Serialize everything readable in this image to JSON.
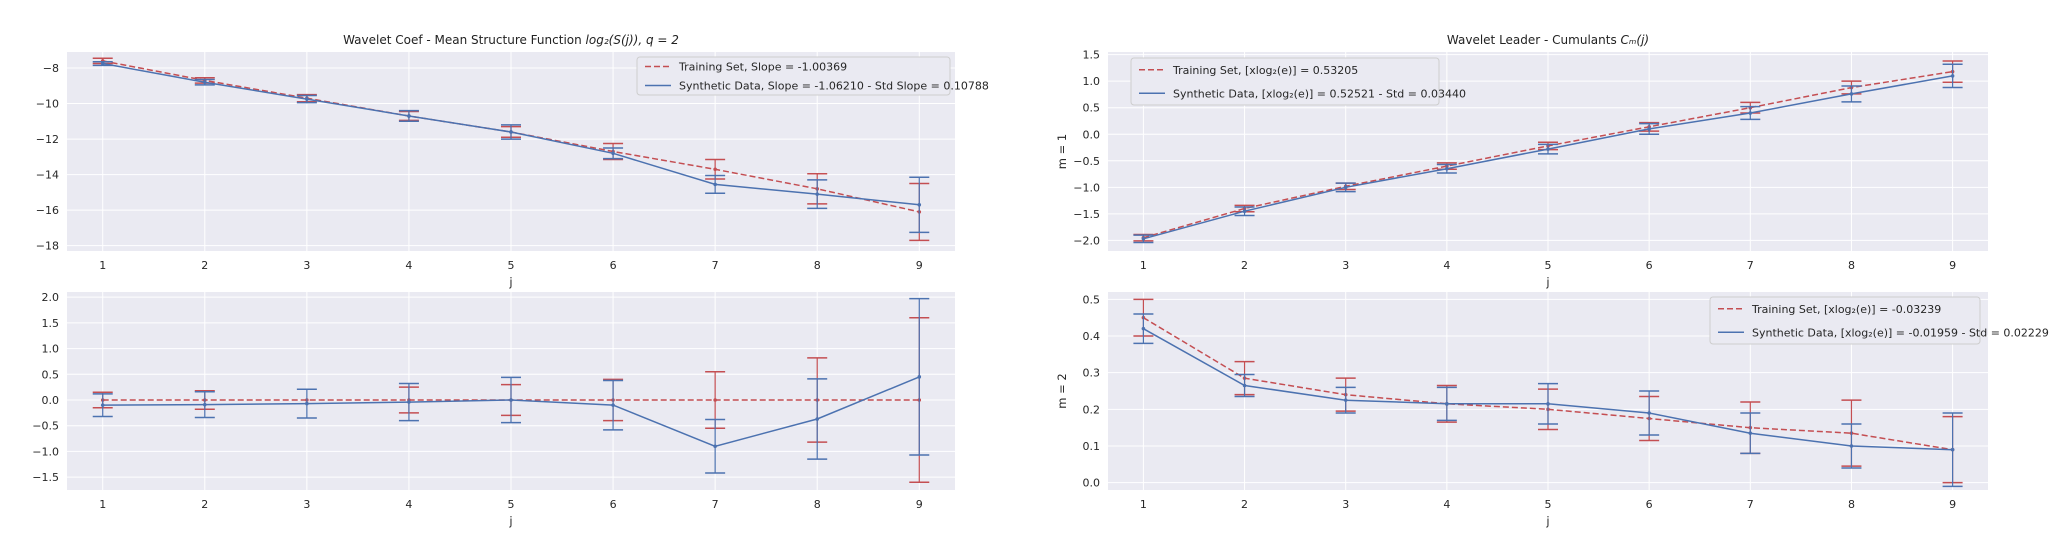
{
  "colors": {
    "background": "#eaeaf2",
    "grid": "#ffffff",
    "training": "#c44e52",
    "synthetic": "#4c72b0",
    "legend_bg": "#eaeaf2",
    "legend_edge": "#cccccc"
  },
  "chart_data": [
    {
      "type": "line",
      "title_text": "Wavelet Coef - Mean Structure Function ",
      "title_math": "log₂(S(j)), q = 2",
      "xlabel": "j",
      "ylabel": "",
      "x": [
        1,
        2,
        3,
        4,
        5,
        6,
        7,
        8,
        9
      ],
      "xlim": [
        0.65,
        9.35
      ],
      "ylim": [
        -18.3,
        -7.1
      ],
      "yticks": [
        -18,
        -16,
        -14,
        -12,
        -10,
        -8
      ],
      "ytick_labels": [
        "−18",
        "−16",
        "−14",
        "−12",
        "−10",
        "−8"
      ],
      "grid": true,
      "legend_position": "top-right",
      "series": [
        {
          "name": "Training Set, Slope = -1.00369",
          "style": "dashed",
          "values": [
            -7.6,
            -8.7,
            -9.7,
            -10.7,
            -11.6,
            -12.7,
            -13.7,
            -14.8,
            -16.1
          ],
          "err": [
            0.15,
            0.15,
            0.2,
            0.25,
            0.3,
            0.45,
            0.55,
            0.85,
            1.6
          ]
        },
        {
          "name": "Synthetic Data, Slope = -1.06210 - Std Slope = 0.10788",
          "style": "solid",
          "values": [
            -7.75,
            -8.8,
            -9.75,
            -10.7,
            -11.6,
            -12.8,
            -14.55,
            -15.1,
            -15.7
          ],
          "err": [
            0.1,
            0.15,
            0.2,
            0.3,
            0.4,
            0.3,
            0.5,
            0.8,
            1.55
          ]
        }
      ]
    },
    {
      "type": "line",
      "title_text": "",
      "title_math": "",
      "xlabel": "j",
      "ylabel": "",
      "x": [
        1,
        2,
        3,
        4,
        5,
        6,
        7,
        8,
        9
      ],
      "xlim": [
        0.65,
        9.35
      ],
      "ylim": [
        -1.75,
        2.1
      ],
      "yticks": [
        -1.5,
        -1.0,
        -0.5,
        0.0,
        0.5,
        1.0,
        1.5,
        2.0
      ],
      "ytick_labels": [
        "−1.5",
        "−1.0",
        "−0.5",
        "0.0",
        "0.5",
        "1.0",
        "1.5",
        "2.0"
      ],
      "grid": true,
      "legend_position": "none",
      "series": [
        {
          "name": "",
          "style": "dashed",
          "values": [
            0,
            0,
            0,
            0,
            0,
            0,
            0,
            0,
            0
          ],
          "err": [
            0.15,
            0.18,
            0.0,
            0.25,
            0.3,
            0.4,
            0.55,
            0.82,
            1.6
          ]
        },
        {
          "name": "",
          "style": "solid",
          "values": [
            -0.1,
            -0.09,
            -0.07,
            -0.04,
            0.0,
            -0.1,
            -0.9,
            -0.37,
            0.45
          ],
          "err": [
            0.22,
            0.25,
            0.28,
            0.36,
            0.44,
            0.48,
            0.52,
            0.78,
            1.52
          ]
        }
      ]
    },
    {
      "type": "line",
      "title_text": "Wavelet Leader - Cumulants ",
      "title_math": "Cₘ(j)",
      "xlabel": "j",
      "ylabel": "m = 1",
      "x": [
        1,
        2,
        3,
        4,
        5,
        6,
        7,
        8,
        9
      ],
      "xlim": [
        0.65,
        9.35
      ],
      "ylim": [
        -2.2,
        1.55
      ],
      "yticks": [
        -2.0,
        -1.5,
        -1.0,
        -0.5,
        0.0,
        0.5,
        1.0,
        1.5
      ],
      "ytick_labels": [
        "−2.0",
        "−1.5",
        "−1.0",
        "−0.5",
        "0.0",
        "0.5",
        "1.0",
        "1.5"
      ],
      "grid": true,
      "legend_position": "top-left",
      "series": [
        {
          "name": "Training Set, [xlog₂(e)] = 0.53205",
          "style": "dashed",
          "values": [
            -1.95,
            -1.4,
            -0.98,
            -0.6,
            -0.22,
            0.14,
            0.5,
            0.88,
            1.18
          ],
          "err": [
            0.06,
            0.06,
            0.06,
            0.06,
            0.07,
            0.08,
            0.1,
            0.12,
            0.2
          ]
        },
        {
          "name": "Synthetic Data, [xlog₂(e)] = 0.52521 - Std = 0.03440",
          "style": "solid",
          "values": [
            -1.97,
            -1.45,
            -1.0,
            -0.65,
            -0.28,
            0.1,
            0.4,
            0.76,
            1.1
          ],
          "err": [
            0.07,
            0.08,
            0.08,
            0.08,
            0.09,
            0.1,
            0.12,
            0.15,
            0.22
          ]
        }
      ]
    },
    {
      "type": "line",
      "title_text": "",
      "title_math": "",
      "xlabel": "j",
      "ylabel": "m = 2",
      "x": [
        1,
        2,
        3,
        4,
        5,
        6,
        7,
        8,
        9
      ],
      "xlim": [
        0.65,
        9.35
      ],
      "ylim": [
        -0.02,
        0.52
      ],
      "yticks": [
        0.0,
        0.1,
        0.2,
        0.3,
        0.4,
        0.5
      ],
      "ytick_labels": [
        "0.0",
        "0.1",
        "0.2",
        "0.3",
        "0.4",
        "0.5"
      ],
      "grid": true,
      "legend_position": "top-right",
      "series": [
        {
          "name": "Training Set, [xlog₂(e)] = -0.03239",
          "style": "dashed",
          "values": [
            0.45,
            0.285,
            0.24,
            0.215,
            0.2,
            0.175,
            0.15,
            0.135,
            0.09
          ],
          "err": [
            0.05,
            0.045,
            0.045,
            0.05,
            0.055,
            0.06,
            0.07,
            0.09,
            0.09
          ]
        },
        {
          "name": "Synthetic Data, [xlog₂(e)] = -0.01959 - Std = 0.02229",
          "style": "solid",
          "values": [
            0.42,
            0.265,
            0.225,
            0.215,
            0.215,
            0.19,
            0.135,
            0.1,
            0.09
          ],
          "err": [
            0.04,
            0.03,
            0.035,
            0.045,
            0.055,
            0.06,
            0.055,
            0.06,
            0.1
          ]
        }
      ]
    }
  ]
}
